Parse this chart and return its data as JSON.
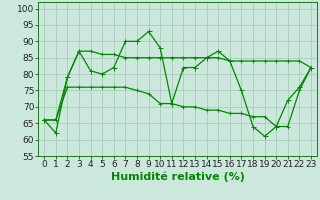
{
  "title": "",
  "xlabel": "Humidité relative (%)",
  "ylabel": "",
  "bg_color": "#cce8dc",
  "grid_color": "#aaccbb",
  "line_color": "#008800",
  "marker_color": "#008800",
  "xlim": [
    -0.5,
    23.5
  ],
  "ylim": [
    55,
    102
  ],
  "yticks": [
    55,
    60,
    65,
    70,
    75,
    80,
    85,
    90,
    95,
    100
  ],
  "xticks": [
    0,
    1,
    2,
    3,
    4,
    5,
    6,
    7,
    8,
    9,
    10,
    11,
    12,
    13,
    14,
    15,
    16,
    17,
    18,
    19,
    20,
    21,
    22,
    23
  ],
  "series_main": [
    66,
    62,
    79,
    87,
    81,
    80,
    82,
    90,
    90,
    93,
    88,
    71,
    82,
    82,
    85,
    87,
    84,
    75,
    64,
    61,
    64,
    72,
    76,
    82
  ],
  "series_upper": [
    66,
    66,
    79,
    87,
    87,
    86,
    86,
    85,
    85,
    85,
    85,
    85,
    85,
    85,
    85,
    85,
    84,
    84,
    84,
    84,
    84,
    84,
    84,
    82
  ],
  "series_lower": [
    66,
    66,
    76,
    76,
    76,
    76,
    76,
    76,
    75,
    74,
    71,
    71,
    70,
    70,
    69,
    69,
    68,
    68,
    67,
    67,
    64,
    64,
    75,
    82
  ],
  "xlabel_fontsize": 8,
  "tick_fontsize": 6.5,
  "linewidth": 0.9,
  "markersize": 2.0
}
